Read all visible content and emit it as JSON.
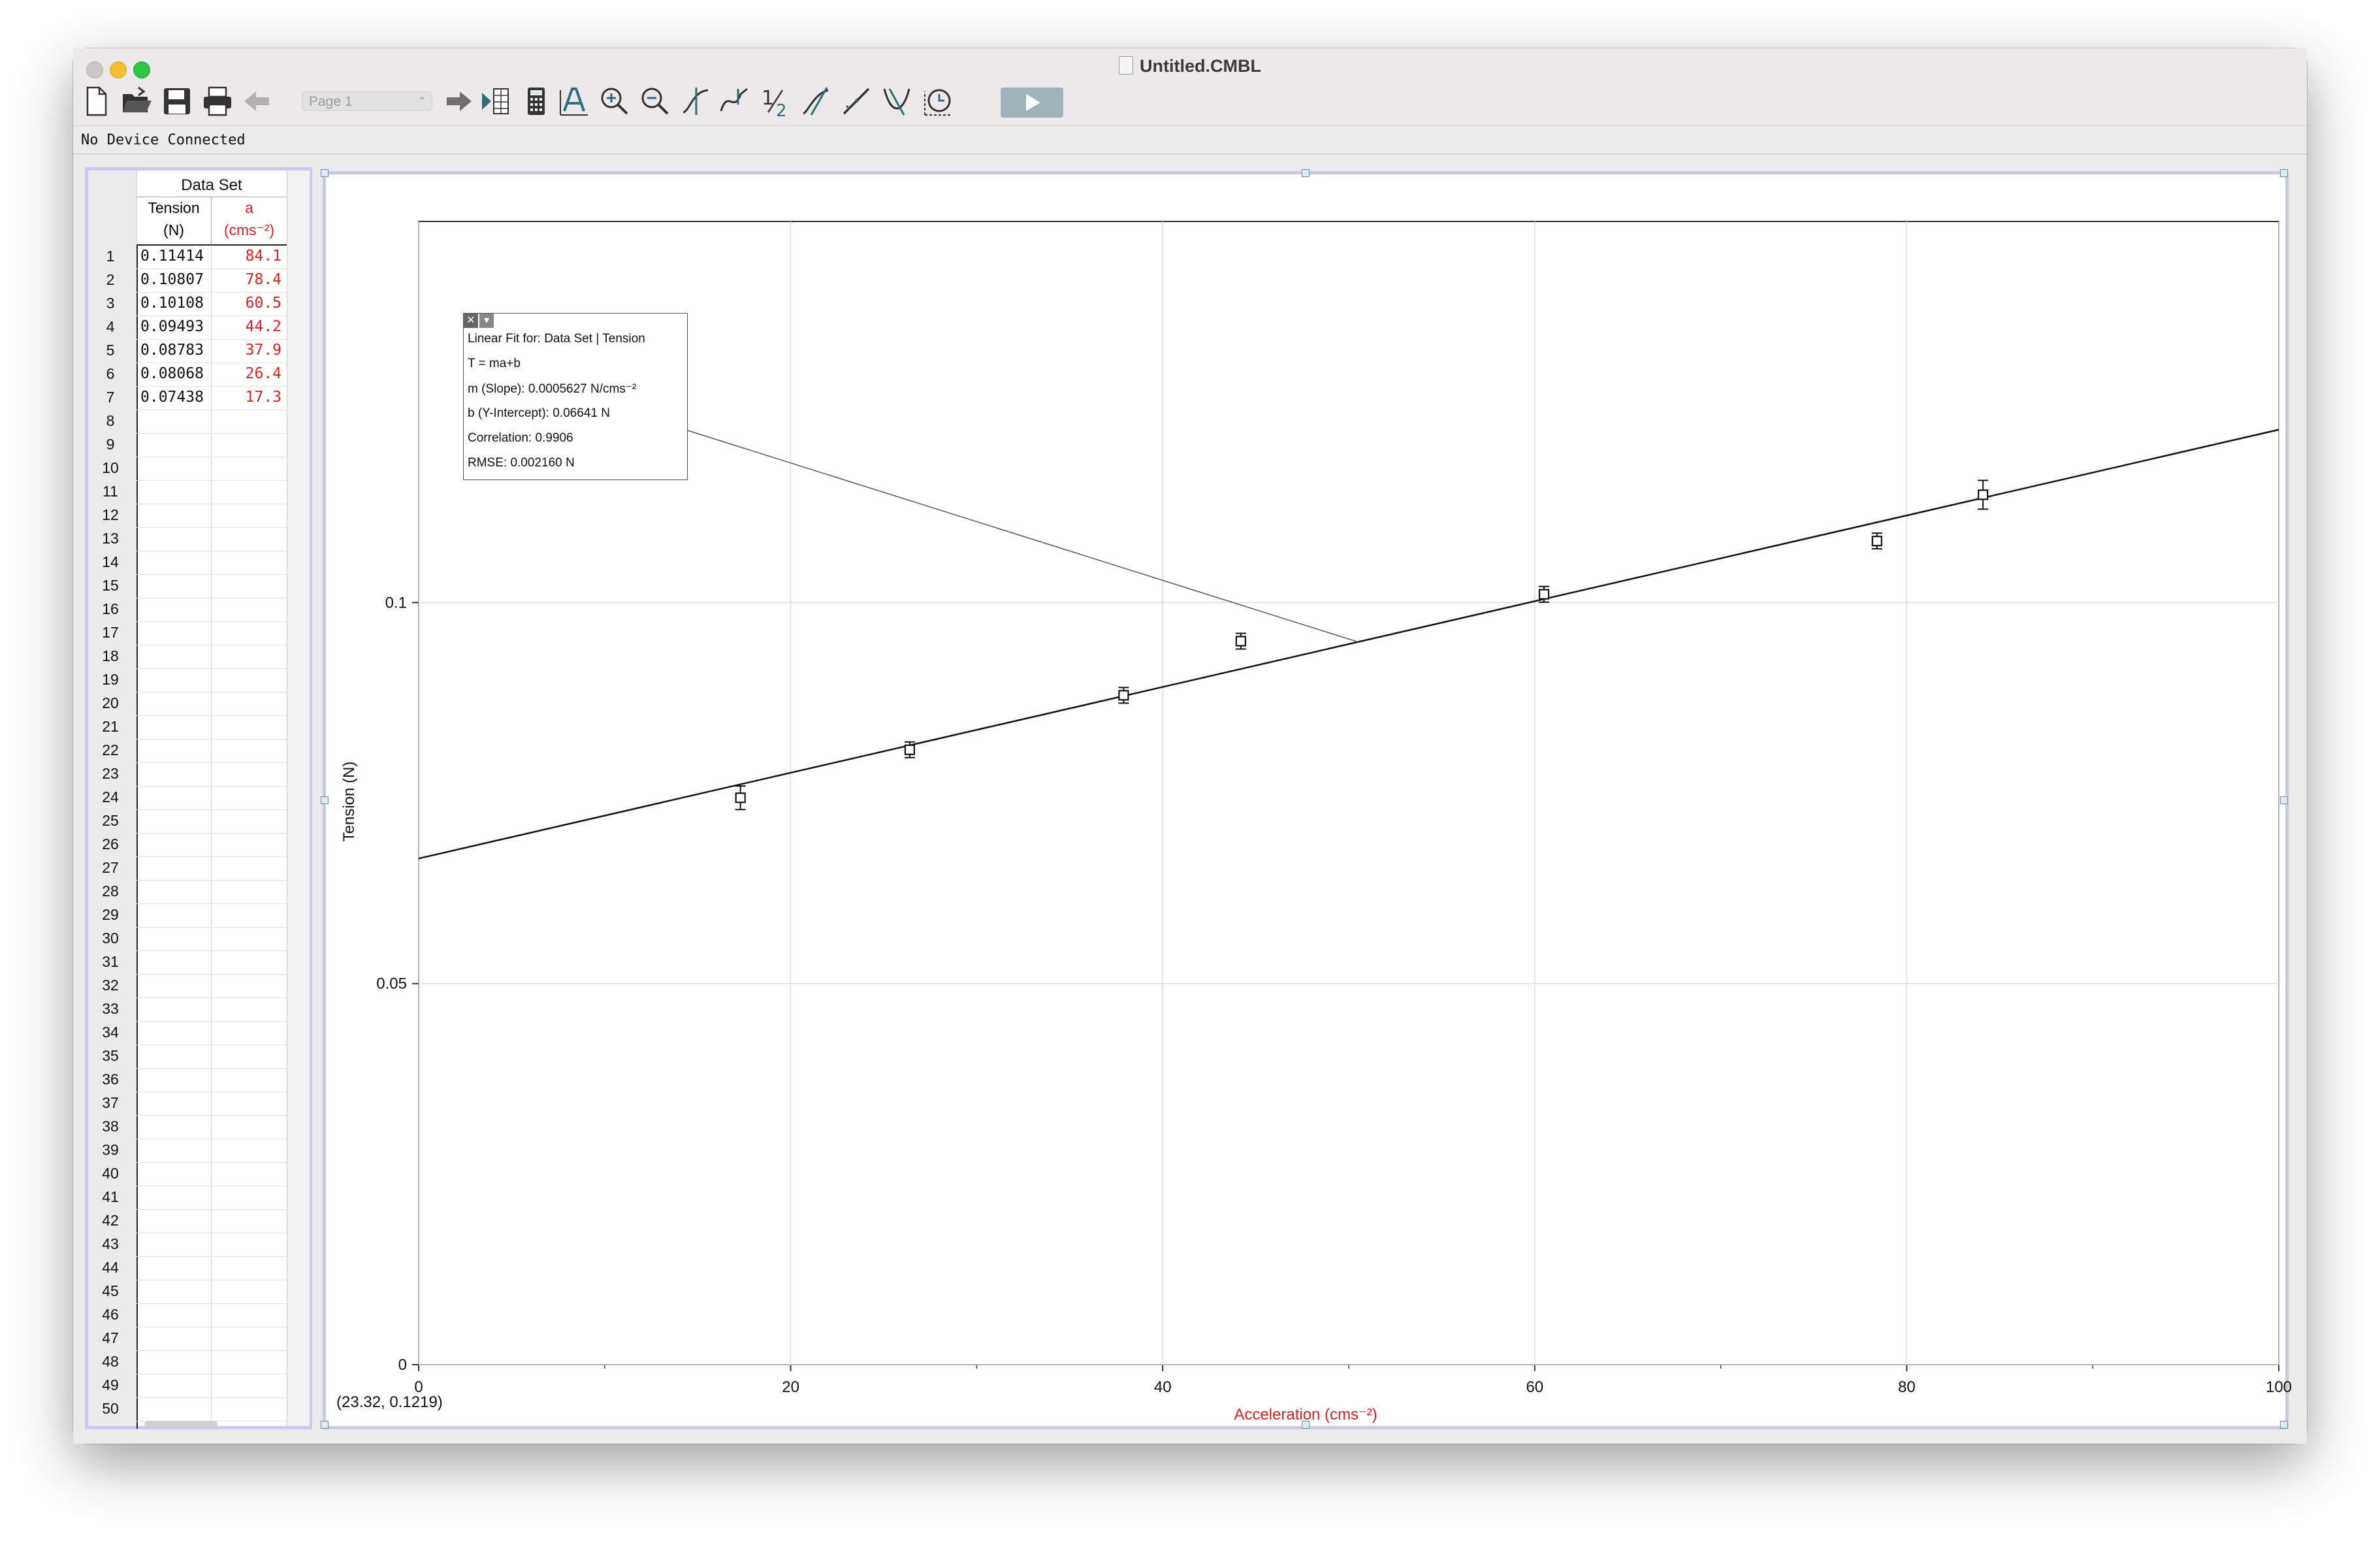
{
  "window": {
    "title": "Untitled.CMBL"
  },
  "toolbar": {
    "page_select": "Page 1",
    "icons": [
      "new-file-icon",
      "open-folder-icon",
      "save-icon",
      "print-icon",
      "back-arrow-icon",
      "forward-arrow-icon",
      "table-toggle-icon",
      "calculator-icon",
      "autoscale-icon",
      "zoom-in-icon",
      "zoom-out-icon",
      "examine-icon",
      "interpolate-icon",
      "integral-icon",
      "tangent-icon",
      "linear-fit-icon",
      "curve-fit-icon",
      "replay-icon",
      "collect-icon"
    ]
  },
  "status": {
    "device": "No Device Connected"
  },
  "table": {
    "dataset_title": "Data Set",
    "columns": [
      {
        "name": "Tension",
        "unit": "(N)",
        "color": "#111111"
      },
      {
        "name": "a",
        "unit": "(cms⁻²)",
        "color": "#d62121"
      }
    ],
    "rows": [
      [
        "0.11414",
        "84.1"
      ],
      [
        "0.10807",
        "78.4"
      ],
      [
        "0.10108",
        "60.5"
      ],
      [
        "0.09493",
        "44.2"
      ],
      [
        "0.08783",
        "37.9"
      ],
      [
        "0.08068",
        "26.4"
      ],
      [
        "0.07438",
        "17.3"
      ]
    ],
    "row_numbers": [
      "1",
      "2",
      "3",
      "4",
      "5",
      "6",
      "7",
      "8",
      "9",
      "10",
      "11",
      "12",
      "13",
      "14",
      "15",
      "16",
      "17",
      "18",
      "19",
      "20",
      "21",
      "22",
      "23",
      "24",
      "25",
      "26",
      "27",
      "28",
      "29",
      "30",
      "31",
      "32",
      "33",
      "34",
      "35",
      "36",
      "37",
      "38",
      "39",
      "40",
      "41",
      "42",
      "43",
      "44",
      "45",
      "46",
      "47",
      "48",
      "49",
      "50"
    ]
  },
  "graph": {
    "ylabel": "Tension (N)",
    "xlabel": "Acceleration (cms⁻²)",
    "coord_readout": "(23.32, 0.1219)",
    "fit": {
      "header": "Linear Fit for: Data Set | Tension",
      "equation": "T = ma+b",
      "slope": "m (Slope): 0.0005627 N/cms⁻²",
      "intercept": "b (Y-Intercept): 0.06641 N",
      "correlation": "Correlation: 0.9906",
      "rmse": "RMSE: 0.002160 N"
    }
  },
  "chart_data": {
    "type": "scatter",
    "xlabel": "Acceleration (cms⁻²)",
    "ylabel": "Tension (N)",
    "xlim": [
      0,
      100
    ],
    "ylim": [
      0,
      0.15
    ],
    "x_ticks": [
      "0",
      "20",
      "40",
      "60",
      "80",
      "100"
    ],
    "y_ticks": [
      "0",
      "0.05",
      "0.1"
    ],
    "grid": true,
    "series": [
      {
        "name": "Tension",
        "x": [
          84.1,
          78.4,
          60.5,
          44.2,
          37.9,
          26.4,
          17.3
        ],
        "y": [
          0.11414,
          0.10807,
          0.10108,
          0.09493,
          0.08783,
          0.08068,
          0.07438
        ]
      }
    ],
    "fit_line": {
      "slope": 0.0005627,
      "intercept": 0.06641
    }
  }
}
